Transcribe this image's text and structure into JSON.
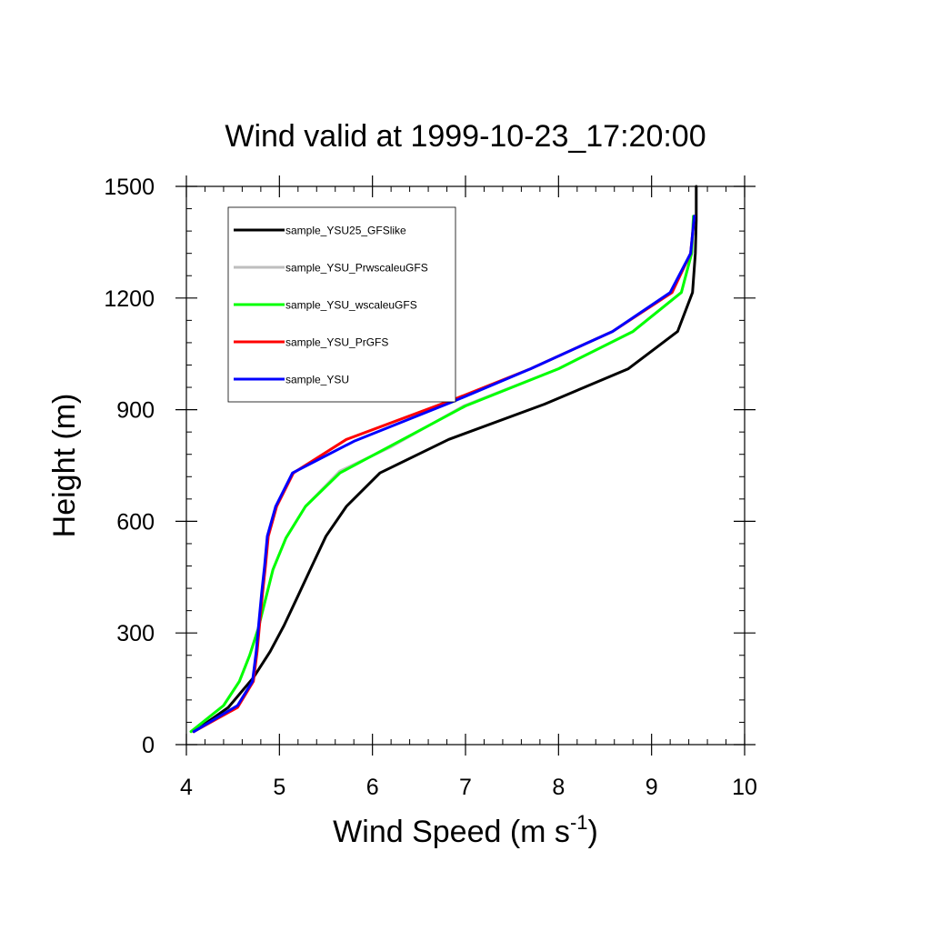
{
  "chart_data": {
    "type": "line",
    "title": "Wind valid at 1999-10-23_17:20:00",
    "xlabel": "Wind Speed (m s",
    "xlabel_sup": "-1",
    "xlabel_end": ")",
    "ylabel": "Height (m)",
    "xlim": [
      4,
      10
    ],
    "ylim": [
      0,
      1500
    ],
    "xticks": [
      "4",
      "5",
      "6",
      "7",
      "8",
      "9",
      "10"
    ],
    "yticks": [
      "0",
      "300",
      "600",
      "900",
      "1200",
      "1500"
    ],
    "legend_position": "top-left",
    "grid": false,
    "series": [
      {
        "name": "sample_YSU25_GFSlike",
        "color": "#000000",
        "points": [
          [
            4.08,
            35
          ],
          [
            4.45,
            100
          ],
          [
            4.72,
            180
          ],
          [
            4.9,
            250
          ],
          [
            5.05,
            320
          ],
          [
            5.2,
            400
          ],
          [
            5.35,
            480
          ],
          [
            5.5,
            560
          ],
          [
            5.72,
            640
          ],
          [
            6.08,
            730
          ],
          [
            6.82,
            820
          ],
          [
            7.85,
            915
          ],
          [
            8.75,
            1010
          ],
          [
            9.28,
            1110
          ],
          [
            9.44,
            1215
          ],
          [
            9.47,
            1320
          ],
          [
            9.48,
            1410
          ],
          [
            9.48,
            1500
          ]
        ]
      },
      {
        "name": "sample_YSU_PrwscaleuGFS",
        "color": "#bebebe",
        "points": [
          [
            4.05,
            35
          ],
          [
            4.4,
            105
          ],
          [
            4.57,
            170
          ],
          [
            4.68,
            240
          ],
          [
            4.77,
            310
          ],
          [
            4.85,
            390
          ],
          [
            4.93,
            470
          ],
          [
            5.07,
            555
          ],
          [
            5.28,
            640
          ],
          [
            5.65,
            735
          ],
          [
            6.2,
            800
          ],
          [
            6.98,
            910
          ],
          [
            8.0,
            1010
          ],
          [
            8.8,
            1110
          ],
          [
            9.32,
            1215
          ],
          [
            9.43,
            1320
          ],
          [
            9.45,
            1420
          ]
        ]
      },
      {
        "name": "sample_YSU_wscaleuGFS",
        "color": "#00ff00",
        "points": [
          [
            4.05,
            35
          ],
          [
            4.4,
            105
          ],
          [
            4.57,
            170
          ],
          [
            4.68,
            240
          ],
          [
            4.77,
            310
          ],
          [
            4.85,
            390
          ],
          [
            4.93,
            470
          ],
          [
            5.07,
            555
          ],
          [
            5.28,
            640
          ],
          [
            5.65,
            730
          ],
          [
            6.25,
            810
          ],
          [
            7.0,
            910
          ],
          [
            8.0,
            1010
          ],
          [
            8.8,
            1110
          ],
          [
            9.32,
            1215
          ],
          [
            9.43,
            1320
          ],
          [
            9.45,
            1420
          ]
        ]
      },
      {
        "name": "sample_YSU_PrGFS",
        "color": "#ff0000",
        "points": [
          [
            4.08,
            35
          ],
          [
            4.55,
            100
          ],
          [
            4.72,
            170
          ],
          [
            4.76,
            250
          ],
          [
            4.79,
            330
          ],
          [
            4.82,
            410
          ],
          [
            4.85,
            480
          ],
          [
            4.88,
            560
          ],
          [
            4.97,
            640
          ],
          [
            5.15,
            730
          ],
          [
            5.72,
            820
          ],
          [
            6.9,
            930
          ],
          [
            7.7,
            1010
          ],
          [
            8.58,
            1110
          ],
          [
            9.22,
            1215
          ],
          [
            9.42,
            1320
          ],
          [
            9.46,
            1420
          ]
        ]
      },
      {
        "name": "sample_YSU",
        "color": "#0000ff",
        "points": [
          [
            4.08,
            35
          ],
          [
            4.55,
            105
          ],
          [
            4.71,
            170
          ],
          [
            4.75,
            250
          ],
          [
            4.78,
            330
          ],
          [
            4.81,
            410
          ],
          [
            4.84,
            480
          ],
          [
            4.87,
            560
          ],
          [
            4.96,
            640
          ],
          [
            5.14,
            730
          ],
          [
            5.8,
            815
          ],
          [
            6.85,
            920
          ],
          [
            7.7,
            1010
          ],
          [
            8.58,
            1110
          ],
          [
            9.2,
            1215
          ],
          [
            9.42,
            1320
          ],
          [
            9.46,
            1420
          ]
        ]
      }
    ]
  }
}
